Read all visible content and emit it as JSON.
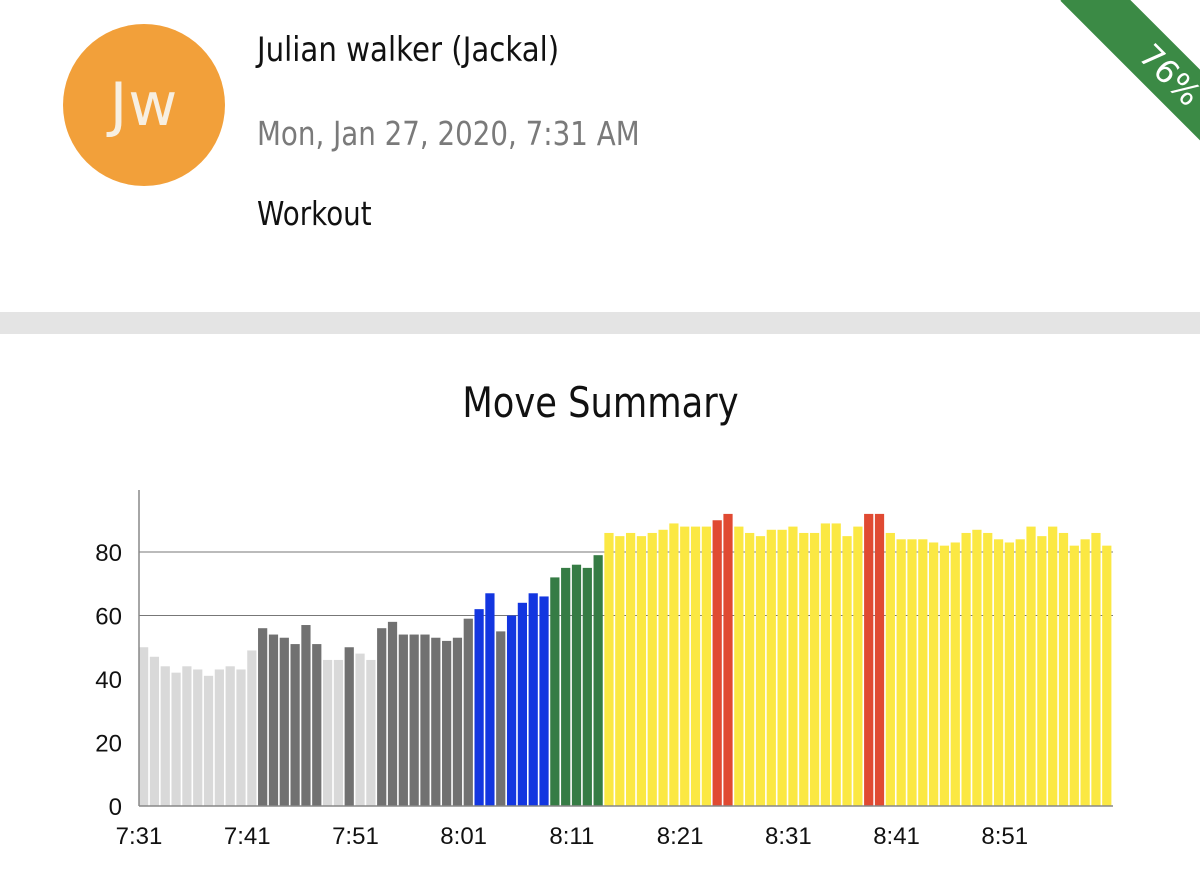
{
  "user": {
    "initials": "Jw",
    "name": "Julian walker (Jackal)",
    "datetime": "Mon, Jan 27, 2020, 7:31 AM",
    "activity": "Workout"
  },
  "ribbon": {
    "label": "76%"
  },
  "colors": {
    "avatar": "#f2a03a",
    "ribbon": "#3b8a45",
    "zone_light_gray": "#d9d9d9",
    "zone_gray": "#717171",
    "zone_blue": "#1336e0",
    "zone_green": "#367c45",
    "zone_yellow": "#fbe843",
    "zone_red": "#e04a32"
  },
  "chart_data": {
    "type": "bar",
    "title": "Move Summary",
    "xlabel": "",
    "ylabel": "",
    "ylim": [
      0,
      95
    ],
    "yticks": [
      0,
      20,
      40,
      60,
      80
    ],
    "xticks": [
      "7:31",
      "7:41",
      "7:51",
      "8:01",
      "8:11",
      "8:21",
      "8:31",
      "8:41",
      "8:51"
    ],
    "grid": "horizontal at 60 and 80",
    "values": [
      50,
      47,
      44,
      42,
      44,
      43,
      41,
      43,
      44,
      43,
      49,
      56,
      54,
      53,
      51,
      57,
      51,
      46,
      46,
      50,
      48,
      46,
      56,
      58,
      54,
      54,
      54,
      53,
      52,
      53,
      59,
      62,
      67,
      55,
      60,
      64,
      67,
      66,
      72,
      75,
      76,
      75,
      79,
      86,
      85,
      86,
      85,
      86,
      87,
      89,
      88,
      88,
      88,
      90,
      92,
      88,
      86,
      85,
      87,
      87,
      88,
      86,
      86,
      89,
      89,
      85,
      88,
      92,
      92,
      86,
      84,
      84,
      84,
      83,
      82,
      83,
      86,
      87,
      86,
      84,
      83,
      84,
      88,
      85,
      88,
      86,
      82,
      84,
      86,
      82
    ],
    "zones": [
      "light_gray",
      "light_gray",
      "light_gray",
      "light_gray",
      "light_gray",
      "light_gray",
      "light_gray",
      "light_gray",
      "light_gray",
      "light_gray",
      "light_gray",
      "gray",
      "gray",
      "gray",
      "gray",
      "gray",
      "gray",
      "light_gray",
      "light_gray",
      "gray",
      "light_gray",
      "light_gray",
      "gray",
      "gray",
      "gray",
      "gray",
      "gray",
      "gray",
      "gray",
      "gray",
      "gray",
      "blue",
      "blue",
      "gray",
      "blue",
      "blue",
      "blue",
      "blue",
      "green",
      "green",
      "green",
      "green",
      "green",
      "yellow",
      "yellow",
      "yellow",
      "yellow",
      "yellow",
      "yellow",
      "yellow",
      "yellow",
      "yellow",
      "yellow",
      "red",
      "red",
      "yellow",
      "yellow",
      "yellow",
      "yellow",
      "yellow",
      "yellow",
      "yellow",
      "yellow",
      "yellow",
      "yellow",
      "yellow",
      "yellow",
      "red",
      "red",
      "yellow",
      "yellow",
      "yellow",
      "yellow",
      "yellow",
      "yellow",
      "yellow",
      "yellow",
      "yellow",
      "yellow",
      "yellow",
      "yellow",
      "yellow",
      "yellow",
      "yellow",
      "yellow",
      "yellow",
      "yellow",
      "yellow",
      "yellow",
      "yellow"
    ]
  }
}
